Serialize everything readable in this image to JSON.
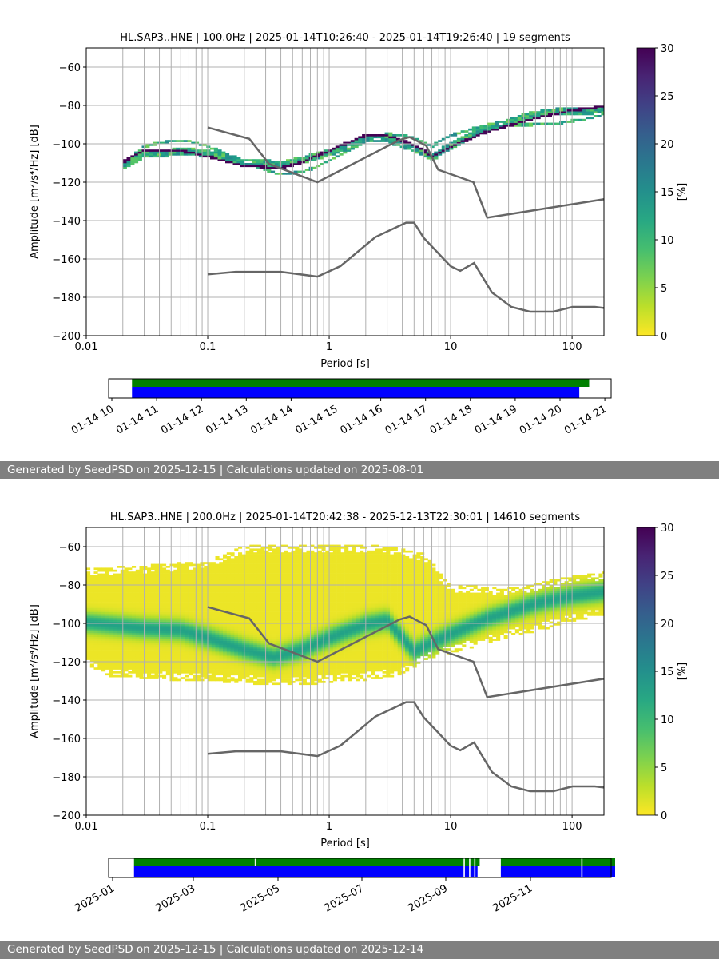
{
  "colors": {
    "nlnm_nhnm": "#666666",
    "grid": "#b0b0b0",
    "bar_green": "#008000",
    "bar_blue": "#0000ff",
    "footer_bg": "#808080"
  },
  "panels": [
    {
      "title": "HL.SAP3..HNE | 100.0Hz | 2025-01-14T10:26:40 - 2025-01-14T19:26:40 | 19 segments",
      "footer": "Generated by SeedPSD on 2025-12-15 | Calculations updated on 2025-08-01",
      "timeline_ticks": [
        "01-14 10",
        "01-14 11",
        "01-14 12",
        "01-14 13",
        "01-14 14",
        "01-14 15",
        "01-14 16",
        "01-14 17",
        "01-14 18",
        "01-14 19",
        "01-14 20",
        "01-14 21"
      ],
      "timeline": {
        "unit": "hours",
        "start": 0,
        "end": 11,
        "green": [
          [
            0.45,
            10.65
          ]
        ],
        "blue": [
          [
            0.45,
            10.43
          ]
        ]
      }
    },
    {
      "title": "HL.SAP3..HNE | 200.0Hz | 2025-01-14T20:42:38 - 2025-12-13T22:30:01 | 14610 segments",
      "footer": "Generated by SeedPSD on 2025-12-15 | Calculations updated on 2025-12-14",
      "timeline_ticks": [
        "2025-01",
        "2025-03",
        "2025-05",
        "2025-07",
        "2025-09",
        "2025-11"
      ],
      "timeline": {
        "unit": "months",
        "start": 0,
        "end": 12,
        "green": [
          [
            0.53,
            3.45
          ],
          [
            3.47,
            8.42
          ],
          [
            8.45,
            8.55
          ],
          [
            8.58,
            8.67
          ],
          [
            8.7,
            8.8
          ],
          [
            9.3,
            11.2
          ],
          [
            11.23,
            12.0
          ]
        ],
        "blue": [
          [
            0.53,
            8.42
          ],
          [
            8.45,
            8.55
          ],
          [
            8.58,
            8.67
          ],
          [
            8.7,
            8.75
          ],
          [
            9.3,
            11.2
          ],
          [
            11.23,
            12.0
          ]
        ]
      }
    }
  ],
  "chart_data": [
    {
      "type": "heatmap",
      "title": "HL.SAP3..HNE | 100.0Hz | 2025-01-14T10:26:40 - 2025-01-14T19:26:40 | 19 segments",
      "xlabel": "Period [s]",
      "ylabel": "Amplitude [m²/s⁴/Hz] [dB]",
      "xscale": "log",
      "xlim": [
        0.01,
        183
      ],
      "ylim": [
        -200,
        -50
      ],
      "xticks": [
        "0.01",
        "0.1",
        "1",
        "10",
        "100"
      ],
      "yticks": [
        "−200",
        "−180",
        "−160",
        "−140",
        "−120",
        "−100",
        "−80",
        "−60"
      ],
      "colorbar": {
        "label": "[%]",
        "range": [
          0,
          30
        ],
        "ticks": [
          "0",
          "5",
          "10",
          "15",
          "20",
          "25",
          "30"
        ]
      },
      "density": {
        "period_range": [
          0.02,
          183
        ],
        "mode_curve": [
          [
            0.02,
            -110
          ],
          [
            0.03,
            -104
          ],
          [
            0.06,
            -104
          ],
          [
            0.1,
            -107
          ],
          [
            0.2,
            -112
          ],
          [
            0.4,
            -113
          ],
          [
            0.6,
            -110
          ],
          [
            1,
            -104
          ],
          [
            2,
            -96
          ],
          [
            3,
            -96
          ],
          [
            5,
            -101
          ],
          [
            7,
            -107
          ],
          [
            10,
            -102
          ],
          [
            20,
            -94
          ],
          [
            50,
            -87
          ],
          [
            100,
            -83
          ],
          [
            183,
            -81
          ]
        ],
        "spread_db": 5,
        "peak_percent": 30,
        "style": "strands"
      },
      "nhnm": [
        [
          0.1,
          -91.5
        ],
        [
          0.22,
          -97.4
        ],
        [
          0.32,
          -110.5
        ],
        [
          0.8,
          -120
        ],
        [
          3.8,
          -98
        ],
        [
          4.6,
          -96.5
        ],
        [
          6.3,
          -101
        ],
        [
          7.9,
          -113.5
        ],
        [
          15.4,
          -120
        ],
        [
          20,
          -138.5
        ],
        [
          354.8,
          -126
        ]
      ],
      "nlnm": [
        [
          0.1,
          -168
        ],
        [
          0.17,
          -166.7
        ],
        [
          0.4,
          -166.7
        ],
        [
          0.8,
          -169.2
        ],
        [
          1.24,
          -163.7
        ],
        [
          2.4,
          -148.6
        ],
        [
          4.3,
          -141.1
        ],
        [
          5,
          -141.1
        ],
        [
          6,
          -149
        ],
        [
          10,
          -163.8
        ],
        [
          12,
          -166.2
        ],
        [
          15.6,
          -162.1
        ],
        [
          21.9,
          -177.5
        ],
        [
          31.6,
          -185
        ],
        [
          45,
          -187.5
        ],
        [
          70,
          -187.5
        ],
        [
          101,
          -185
        ],
        [
          154,
          -185
        ],
        [
          328,
          -187.5
        ]
      ]
    },
    {
      "type": "heatmap",
      "title": "HL.SAP3..HNE | 200.0Hz | 2025-01-14T20:42:38 - 2025-12-13T22:30:01 | 14610 segments",
      "xlabel": "Period [s]",
      "ylabel": "Amplitude [m²/s⁴/Hz] [dB]",
      "xscale": "log",
      "xlim": [
        0.01,
        183
      ],
      "ylim": [
        -200,
        -50
      ],
      "xticks": [
        "0.01",
        "0.1",
        "1",
        "10",
        "100"
      ],
      "yticks": [
        "−200",
        "−180",
        "−160",
        "−140",
        "−120",
        "−100",
        "−80",
        "−60"
      ],
      "colorbar": {
        "label": "[%]",
        "range": [
          0,
          30
        ],
        "ticks": [
          "0",
          "5",
          "10",
          "15",
          "20",
          "25",
          "30"
        ]
      },
      "density": {
        "period_range": [
          0.01,
          183
        ],
        "mode_curve": [
          [
            0.01,
            -100
          ],
          [
            0.03,
            -103
          ],
          [
            0.06,
            -104
          ],
          [
            0.1,
            -108
          ],
          [
            0.2,
            -114
          ],
          [
            0.35,
            -118
          ],
          [
            0.6,
            -114
          ],
          [
            1,
            -108
          ],
          [
            2,
            -101
          ],
          [
            3,
            -99
          ],
          [
            4,
            -108
          ],
          [
            5,
            -115
          ],
          [
            10,
            -106
          ],
          [
            20,
            -98
          ],
          [
            50,
            -90
          ],
          [
            100,
            -86
          ],
          [
            183,
            -84
          ]
        ],
        "upper_envelope": [
          [
            0.01,
            -72
          ],
          [
            0.1,
            -68
          ],
          [
            0.2,
            -60
          ],
          [
            1,
            -60
          ],
          [
            3,
            -60
          ],
          [
            6,
            -64
          ],
          [
            10,
            -80
          ],
          [
            30,
            -82
          ],
          [
            100,
            -76
          ],
          [
            183,
            -74
          ]
        ],
        "lower_envelope": [
          [
            0.01,
            -122
          ],
          [
            0.015,
            -128
          ],
          [
            0.05,
            -130
          ],
          [
            0.5,
            -133
          ],
          [
            2,
            -130
          ],
          [
            4,
            -128
          ],
          [
            6,
            -120
          ],
          [
            10,
            -116
          ],
          [
            30,
            -108
          ],
          [
            100,
            -100
          ],
          [
            183,
            -96
          ]
        ],
        "spread_db": 5,
        "peak_percent": 12,
        "style": "broad"
      },
      "nhnm": [
        [
          0.1,
          -91.5
        ],
        [
          0.22,
          -97.4
        ],
        [
          0.32,
          -110.5
        ],
        [
          0.8,
          -120
        ],
        [
          3.8,
          -98
        ],
        [
          4.6,
          -96.5
        ],
        [
          6.3,
          -101
        ],
        [
          7.9,
          -113.5
        ],
        [
          15.4,
          -120
        ],
        [
          20,
          -138.5
        ],
        [
          354.8,
          -126
        ]
      ],
      "nlnm": [
        [
          0.1,
          -168
        ],
        [
          0.17,
          -166.7
        ],
        [
          0.4,
          -166.7
        ],
        [
          0.8,
          -169.2
        ],
        [
          1.24,
          -163.7
        ],
        [
          2.4,
          -148.6
        ],
        [
          4.3,
          -141.1
        ],
        [
          5,
          -141.1
        ],
        [
          6,
          -149
        ],
        [
          10,
          -163.8
        ],
        [
          12,
          -166.2
        ],
        [
          15.6,
          -162.1
        ],
        [
          21.9,
          -177.5
        ],
        [
          31.6,
          -185
        ],
        [
          45,
          -187.5
        ],
        [
          70,
          -187.5
        ],
        [
          101,
          -185
        ],
        [
          154,
          -185
        ],
        [
          328,
          -187.5
        ]
      ]
    }
  ]
}
